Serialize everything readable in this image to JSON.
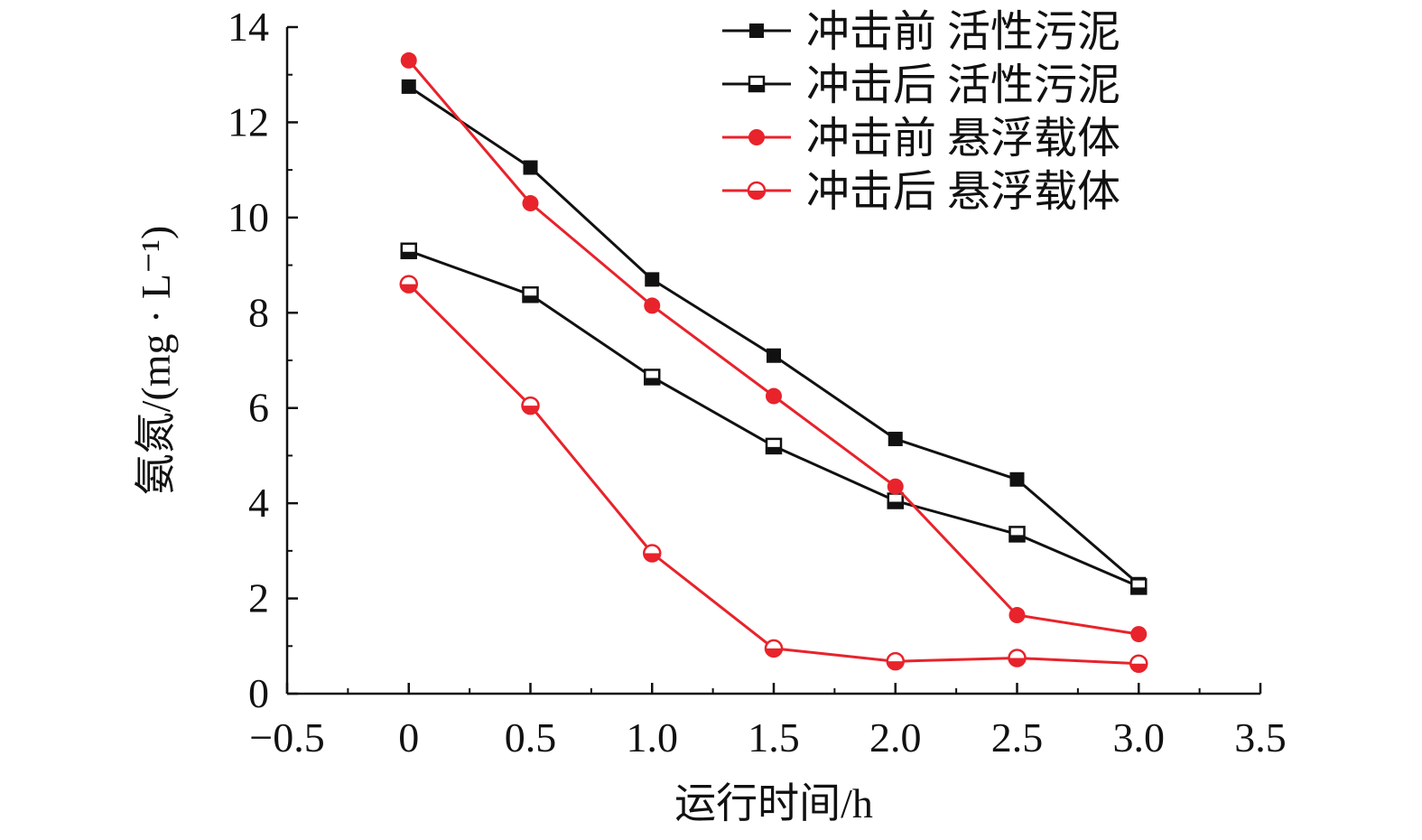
{
  "chart_data": {
    "type": "line",
    "title": "",
    "xlabel": "运行时间/h",
    "ylabel": "氨氮/(mg · L⁻¹)",
    "xlim": [
      -0.5,
      3.5
    ],
    "ylim": [
      0,
      14
    ],
    "x_ticks": [
      -0.5,
      0,
      0.5,
      1.0,
      1.5,
      2.0,
      2.5,
      3.0,
      3.5
    ],
    "x_tick_labels": [
      "−0.5",
      "0",
      "0.5",
      "1.0",
      "1.5",
      "2.0",
      "2.5",
      "3.0",
      "3.5"
    ],
    "y_ticks": [
      0,
      2,
      4,
      6,
      8,
      10,
      12,
      14
    ],
    "y_tick_labels": [
      "0",
      "2",
      "4",
      "6",
      "8",
      "10",
      "12",
      "14"
    ],
    "grid": false,
    "legend_position": "top-right",
    "x": [
      0,
      0.5,
      1.0,
      1.5,
      2.0,
      2.5,
      3.0
    ],
    "series": [
      {
        "name": "冲击前 活性污泥",
        "values": [
          12.75,
          11.05,
          8.7,
          7.1,
          5.35,
          4.5,
          2.3
        ],
        "color": "#111111",
        "marker": "square-filled"
      },
      {
        "name": "冲击后 活性污泥",
        "values": [
          9.3,
          8.38,
          6.65,
          5.2,
          4.05,
          3.35,
          2.25
        ],
        "color": "#111111",
        "marker": "square-half"
      },
      {
        "name": "冲击前 悬浮载体",
        "values": [
          13.3,
          10.3,
          8.15,
          6.25,
          4.35,
          1.65,
          1.25
        ],
        "color": "#e8232b",
        "marker": "circle-filled"
      },
      {
        "name": "冲击后 悬浮载体",
        "values": [
          8.6,
          6.05,
          2.95,
          0.95,
          0.68,
          0.75,
          0.63
        ],
        "color": "#e8232b",
        "marker": "circle-half"
      }
    ]
  }
}
